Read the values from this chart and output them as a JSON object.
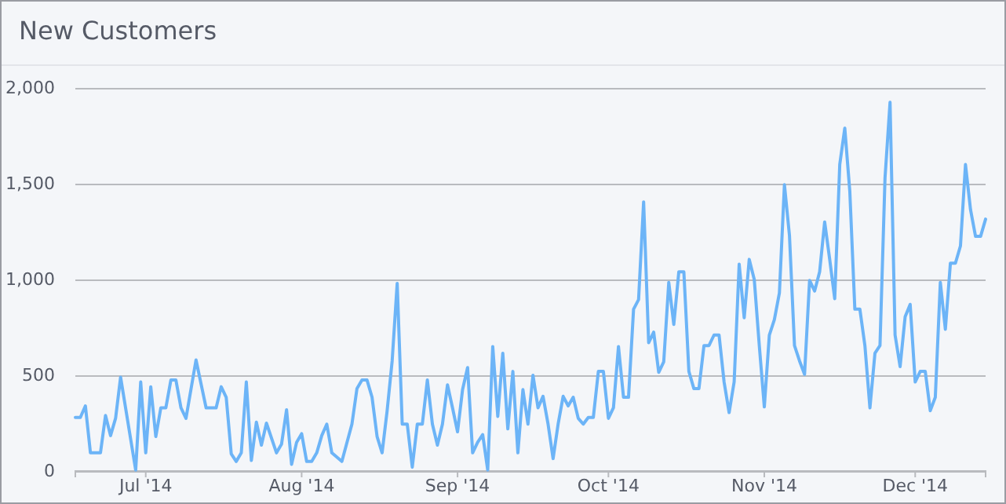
{
  "chart_data": {
    "type": "line",
    "title": "New Customers",
    "x": [
      "2014-06-17",
      "2014-06-18",
      "2014-06-19",
      "2014-06-20",
      "2014-06-22",
      "2014-06-23",
      "2014-06-24",
      "2014-06-25",
      "2014-06-26",
      "2014-06-29",
      "2014-06-30",
      "2014-07-01",
      "2014-07-02",
      "2014-07-03",
      "2014-07-04",
      "2014-07-05",
      "2014-07-06",
      "2014-07-07",
      "2014-07-08",
      "2014-07-09",
      "2014-07-11",
      "2014-07-13",
      "2014-07-15",
      "2014-07-16",
      "2014-07-17",
      "2014-07-18",
      "2014-07-19",
      "2014-07-20",
      "2014-07-21",
      "2014-07-22",
      "2014-07-23",
      "2014-07-24",
      "2014-07-25",
      "2014-07-27",
      "2014-07-28",
      "2014-07-29",
      "2014-07-30",
      "2014-07-31",
      "2014-08-01",
      "2014-08-02",
      "2014-08-03",
      "2014-08-04",
      "2014-08-05",
      "2014-08-06",
      "2014-08-07",
      "2014-08-09",
      "2014-08-11",
      "2014-08-12",
      "2014-08-13",
      "2014-08-14",
      "2014-08-15",
      "2014-08-16",
      "2014-08-17",
      "2014-08-18",
      "2014-08-19",
      "2014-08-20",
      "2014-08-21",
      "2014-08-22",
      "2014-08-23",
      "2014-08-24",
      "2014-08-25",
      "2014-08-26",
      "2014-08-27",
      "2014-08-28",
      "2014-08-29",
      "2014-08-30",
      "2014-08-31",
      "2014-09-01",
      "2014-09-02",
      "2014-09-03",
      "2014-09-04",
      "2014-09-05",
      "2014-09-06",
      "2014-09-07",
      "2014-09-08",
      "2014-09-09",
      "2014-09-10",
      "2014-09-11",
      "2014-09-12",
      "2014-09-13",
      "2014-09-14",
      "2014-09-15",
      "2014-09-16",
      "2014-09-17",
      "2014-09-18",
      "2014-09-19",
      "2014-09-20",
      "2014-09-21",
      "2014-09-22",
      "2014-09-23",
      "2014-09-24",
      "2014-09-25",
      "2014-09-26",
      "2014-09-27",
      "2014-09-28",
      "2014-09-29",
      "2014-09-30",
      "2014-10-01",
      "2014-10-02",
      "2014-10-03",
      "2014-10-04",
      "2014-10-05",
      "2014-10-06",
      "2014-10-07",
      "2014-10-08",
      "2014-10-09",
      "2014-10-10",
      "2014-10-11",
      "2014-10-12",
      "2014-10-13",
      "2014-10-14",
      "2014-10-15",
      "2014-10-16",
      "2014-10-17",
      "2014-10-18",
      "2014-10-19",
      "2014-10-20",
      "2014-10-21",
      "2014-10-22",
      "2014-10-23",
      "2014-10-24",
      "2014-10-25",
      "2014-10-26",
      "2014-10-27",
      "2014-10-28",
      "2014-10-29",
      "2014-10-30",
      "2014-10-31",
      "2014-11-01",
      "2014-11-02",
      "2014-11-03",
      "2014-11-04",
      "2014-11-05",
      "2014-11-06",
      "2014-11-07",
      "2014-11-08",
      "2014-11-09",
      "2014-11-10",
      "2014-11-11",
      "2014-11-12",
      "2014-11-13",
      "2014-11-14",
      "2014-11-15",
      "2014-11-16",
      "2014-11-17",
      "2014-11-18",
      "2014-11-19",
      "2014-11-20",
      "2014-11-21",
      "2014-11-22",
      "2014-11-23",
      "2014-11-24",
      "2014-11-25",
      "2014-11-26",
      "2014-11-27",
      "2014-11-28",
      "2014-11-29",
      "2014-11-30",
      "2014-12-01",
      "2014-12-02",
      "2014-12-03",
      "2014-12-04",
      "2014-12-05",
      "2014-12-06",
      "2014-12-07",
      "2014-12-08",
      "2014-12-09",
      "2014-12-10",
      "2014-12-11",
      "2014-12-12",
      "2014-12-13",
      "2014-12-14",
      "2014-12-15"
    ],
    "series": [
      {
        "color": "#6cb4f7",
        "values": [
          280,
          280,
          340,
          95,
          95,
          290,
          185,
          275,
          490,
          5,
          465,
          95,
          440,
          180,
          330,
          330,
          475,
          475,
          330,
          275,
          580,
          330,
          330,
          440,
          385,
          90,
          50,
          95,
          465,
          55,
          255,
          135,
          250,
          95,
          140,
          320,
          35,
          150,
          195,
          50,
          50,
          95,
          185,
          245,
          95,
          50,
          245,
          430,
          475,
          475,
          385,
          180,
          95,
          315,
          575,
          980,
          245,
          245,
          20,
          245,
          245,
          475,
          245,
          135,
          245,
          450,
          330,
          205,
          425,
          540,
          95,
          150,
          190,
          5,
          650,
          285,
          615,
          220,
          520,
          95,
          425,
          245,
          500,
          330,
          390,
          245,
          65,
          245,
          390,
          340,
          385,
          275,
          245,
          280,
          280,
          520,
          520,
          275,
          330,
          650,
          385,
          385,
          845,
          895,
          1405,
          670,
          725,
          515,
          570,
          985,
          765,
          1040,
          1040,
          520,
          430,
          430,
          655,
          655,
          710,
          710,
          465,
          305,
          465,
          1080,
          800,
          1105,
          1000,
          655,
          335,
          710,
          790,
          930,
          1495,
          1230,
          655,
          575,
          505,
          995,
          940,
          1040,
          1300,
          1105,
          900,
          1600,
          1790,
          1460,
          845,
          845,
          655,
          330,
          615,
          655,
          1530,
          1925,
          710,
          545,
          805,
          870,
          465,
          520,
          520,
          315,
          385,
          985,
          740,
          1085,
          1085,
          1175,
          1600,
          1365,
          1225,
          1225,
          1315
        ]
      }
    ],
    "xlim": [
      "2014-06-17",
      "2014-12-15"
    ],
    "xticks": [
      {
        "value": "2014-07-01",
        "label": "Jul '14"
      },
      {
        "value": "2014-08-01",
        "label": "Aug '14"
      },
      {
        "value": "2014-09-01",
        "label": "Sep '14"
      },
      {
        "value": "2014-10-01",
        "label": "Oct '14"
      },
      {
        "value": "2014-11-01",
        "label": "Nov '14"
      },
      {
        "value": "2014-12-01",
        "label": "Dec '14"
      }
    ],
    "ylim": [
      0,
      2000
    ],
    "yticks": [
      {
        "value": 0,
        "label": "0"
      },
      {
        "value": 500,
        "label": "500"
      },
      {
        "value": 1000,
        "label": "1,000"
      },
      {
        "value": 1500,
        "label": "1,500"
      },
      {
        "value": 2000,
        "label": "2,000"
      }
    ],
    "grid": "y",
    "marker": "none",
    "line_style": "solid"
  }
}
